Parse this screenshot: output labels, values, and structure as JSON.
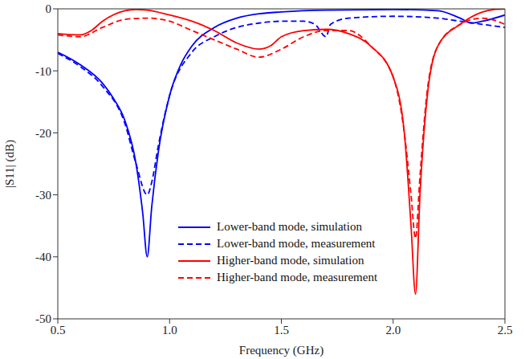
{
  "chart_data": {
    "type": "line",
    "x_label": "Frequency (GHz)",
    "y_label": "|S11| (dB)",
    "xlim": [
      0.5,
      2.5
    ],
    "xticks": [
      0.5,
      {
        "value": 1,
        "label": "1.0"
      },
      1.5,
      {
        "value": 2,
        "label": "2.0"
      },
      2.5
    ],
    "ylim": [
      -50,
      0
    ],
    "yticks": [
      -50,
      -40,
      -30,
      -20,
      -10,
      0
    ],
    "grid": false,
    "legend": "lower center",
    "series": [
      {
        "name": "Lower-band mode, simulation",
        "color": "#0000ff",
        "line_style": "solid",
        "x": [
          0.5,
          0.6,
          0.7,
          0.75,
          0.8,
          0.85,
          0.88,
          0.9,
          0.92,
          0.95,
          1.0,
          1.05,
          1.1,
          1.2,
          1.3,
          1.4,
          1.5,
          1.7,
          2.0,
          2.2,
          2.3,
          2.35,
          2.4,
          2.5
        ],
        "values": [
          -7,
          -9,
          -12,
          -14.5,
          -18,
          -25,
          -33,
          -40,
          -32,
          -23,
          -14,
          -9,
          -6,
          -3,
          -1.5,
          -0.8,
          -0.5,
          -0.2,
          -0.1,
          -0.3,
          -1.5,
          -2.3,
          -2,
          -1
        ]
      },
      {
        "name": "Lower-band mode, measurement",
        "color": "#0000ff",
        "line_style": "dashed",
        "x": [
          0.5,
          0.6,
          0.7,
          0.8,
          0.85,
          0.9,
          0.92,
          0.95,
          1.0,
          1.1,
          1.2,
          1.3,
          1.4,
          1.5,
          1.6,
          1.65,
          1.7,
          1.72,
          1.8,
          2.0,
          2.2,
          2.3,
          2.4,
          2.5
        ],
        "values": [
          -7.2,
          -9.3,
          -12.5,
          -18.5,
          -25,
          -30,
          -28,
          -22,
          -14,
          -7,
          -4.5,
          -3,
          -2.3,
          -2,
          -2,
          -2.5,
          -4.5,
          -2.5,
          -1.5,
          -1.2,
          -1.5,
          -2,
          -2.5,
          -3
        ]
      },
      {
        "name": "Higher-band mode, simulation",
        "color": "#ff0000",
        "line_style": "solid",
        "x": [
          0.5,
          0.6,
          0.65,
          0.7,
          0.8,
          0.85,
          0.9,
          1.0,
          1.1,
          1.2,
          1.3,
          1.4,
          1.45,
          1.5,
          1.6,
          1.7,
          1.8,
          1.9,
          2.0,
          2.05,
          2.08,
          2.1,
          2.12,
          2.15,
          2.2,
          2.3,
          2.4,
          2.45,
          2.5
        ],
        "values": [
          -4,
          -4.2,
          -3.5,
          -2,
          -0.3,
          -0.1,
          -0.2,
          -1,
          -2,
          -3.5,
          -5.5,
          -6.5,
          -6,
          -4.5,
          -3.5,
          -3.3,
          -4,
          -6,
          -11,
          -20,
          -35,
          -46,
          -30,
          -15,
          -6,
          -2.5,
          -0.5,
          -0.1,
          0
        ]
      },
      {
        "name": "Higher-band mode, measurement",
        "color": "#ff0000",
        "line_style": "dashed",
        "x": [
          0.5,
          0.6,
          0.7,
          0.8,
          0.9,
          1.0,
          1.1,
          1.2,
          1.3,
          1.4,
          1.5,
          1.6,
          1.7,
          1.8,
          1.9,
          2.0,
          2.05,
          2.08,
          2.1,
          2.12,
          2.15,
          2.2,
          2.3,
          2.4,
          2.5
        ],
        "values": [
          -4.2,
          -4.5,
          -3,
          -1.7,
          -1.5,
          -2,
          -3.5,
          -5,
          -6.5,
          -7.8,
          -6.5,
          -4.5,
          -3.5,
          -3.5,
          -6,
          -11,
          -20,
          -30,
          -37,
          -27,
          -14,
          -6,
          -2.5,
          -1.5,
          -2.5
        ]
      }
    ]
  }
}
